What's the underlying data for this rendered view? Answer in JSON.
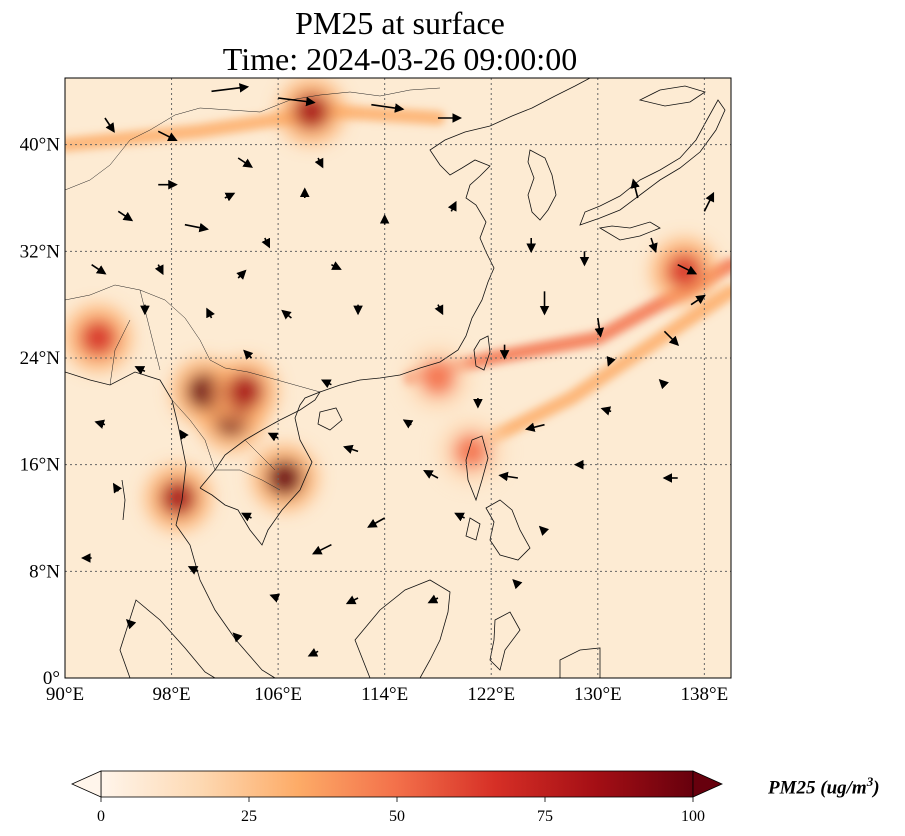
{
  "title_line1": "PM25 at surface",
  "title_line2": "Time: 2024-03-26 09:00:00",
  "map_extent": {
    "lon": [
      90,
      140
    ],
    "lat": [
      0,
      45
    ]
  },
  "lon_ticks": [
    {
      "value": 90,
      "label": "90°E"
    },
    {
      "value": 98,
      "label": "98°E"
    },
    {
      "value": 106,
      "label": "106°E"
    },
    {
      "value": 114,
      "label": "114°E"
    },
    {
      "value": 122,
      "label": "122°E"
    },
    {
      "value": 130,
      "label": "130°E"
    },
    {
      "value": 138,
      "label": "138°E"
    }
  ],
  "lat_ticks": [
    {
      "value": 0,
      "label": "0°"
    },
    {
      "value": 8,
      "label": "8°N"
    },
    {
      "value": 16,
      "label": "16°N"
    },
    {
      "value": 24,
      "label": "24°N"
    },
    {
      "value": 32,
      "label": "32°N"
    },
    {
      "value": 40,
      "label": "40°N"
    }
  ],
  "colorbar": {
    "label": "PM25 (ug/m",
    "label_sup": "3",
    "label_close": ")",
    "min": 0,
    "max": 100,
    "extend": "both",
    "ticks": [
      {
        "value": 0,
        "label": "0"
      },
      {
        "value": 25,
        "label": "25"
      },
      {
        "value": 50,
        "label": "50"
      },
      {
        "value": 75,
        "label": "75"
      },
      {
        "value": 100,
        "label": "100"
      }
    ],
    "colors": [
      "#fff5eb",
      "#fdd9b3",
      "#fdab67",
      "#f3704a",
      "#d62f26",
      "#a50f15",
      "#67000d"
    ]
  },
  "pollution_hotspots": [
    {
      "lon": 102.5,
      "lat": 19.5,
      "value": 100
    },
    {
      "lon": 100.5,
      "lat": 21.5,
      "value": 95
    },
    {
      "lon": 103.5,
      "lat": 21.5,
      "value": 90
    },
    {
      "lon": 106.5,
      "lat": 15.0,
      "value": 95
    },
    {
      "lon": 98.5,
      "lat": 13.5,
      "value": 80
    },
    {
      "lon": 108.5,
      "lat": 42.5,
      "value": 90
    },
    {
      "lon": 92.5,
      "lat": 25.5,
      "value": 70
    },
    {
      "lon": 136.5,
      "lat": 30.5,
      "value": 70
    },
    {
      "lon": 118.0,
      "lat": 22.5,
      "value": 45
    },
    {
      "lon": 120.5,
      "lat": 17.0,
      "value": 55
    }
  ],
  "pollution_bands": [
    {
      "points": [
        [
          116,
          22.5
        ],
        [
          122,
          24
        ],
        [
          130,
          25.5
        ],
        [
          140,
          31
        ]
      ],
      "value": 45
    },
    {
      "points": [
        [
          122,
          18
        ],
        [
          128,
          21
        ],
        [
          134,
          25
        ],
        [
          140,
          29
        ]
      ],
      "value": 30
    },
    {
      "points": [
        [
          90,
          40
        ],
        [
          100,
          41
        ],
        [
          110,
          42.5
        ],
        [
          118,
          42
        ]
      ],
      "value": 25
    }
  ],
  "wind_vectors": [
    {
      "lon": 101,
      "lat": 44,
      "u": 4,
      "v": 0.5
    },
    {
      "lon": 106,
      "lat": 43.5,
      "u": 4,
      "v": -0.5
    },
    {
      "lon": 113,
      "lat": 43,
      "u": 3.5,
      "v": -0.5
    },
    {
      "lon": 118,
      "lat": 42,
      "u": 2.5,
      "v": 0
    },
    {
      "lon": 93,
      "lat": 42,
      "u": 1,
      "v": -1.5
    },
    {
      "lon": 97,
      "lat": 41,
      "u": 2,
      "v": -1
    },
    {
      "lon": 103,
      "lat": 39,
      "u": 1.5,
      "v": -1
    },
    {
      "lon": 109,
      "lat": 39,
      "u": 0.5,
      "v": -1
    },
    {
      "lon": 97,
      "lat": 37,
      "u": 2,
      "v": 0
    },
    {
      "lon": 102,
      "lat": 36,
      "u": 1,
      "v": 0.5
    },
    {
      "lon": 108,
      "lat": 36,
      "u": 0,
      "v": 1
    },
    {
      "lon": 94,
      "lat": 35,
      "u": 1.5,
      "v": -1
    },
    {
      "lon": 99,
      "lat": 34,
      "u": 2.5,
      "v": -0.5
    },
    {
      "lon": 105,
      "lat": 33,
      "u": 0.5,
      "v": -1
    },
    {
      "lon": 92,
      "lat": 31,
      "u": 1.5,
      "v": -1
    },
    {
      "lon": 97,
      "lat": 31,
      "u": 0.5,
      "v": -1
    },
    {
      "lon": 103,
      "lat": 30,
      "u": 0.8,
      "v": 0.8
    },
    {
      "lon": 110,
      "lat": 31,
      "u": 1,
      "v": -0.5
    },
    {
      "lon": 114,
      "lat": 34,
      "u": 0,
      "v": 1
    },
    {
      "lon": 119,
      "lat": 35,
      "u": 0.5,
      "v": 1
    },
    {
      "lon": 125,
      "lat": 33,
      "u": 0,
      "v": -1.5
    },
    {
      "lon": 129,
      "lat": 32,
      "u": 0,
      "v": -1.5
    },
    {
      "lon": 126,
      "lat": 29,
      "u": 0,
      "v": -2.5
    },
    {
      "lon": 130,
      "lat": 27,
      "u": 0.3,
      "v": -2
    },
    {
      "lon": 133,
      "lat": 36,
      "u": -0.5,
      "v": 2
    },
    {
      "lon": 134,
      "lat": 33,
      "u": 0.5,
      "v": -1.5
    },
    {
      "lon": 136,
      "lat": 31,
      "u": 2,
      "v": -1
    },
    {
      "lon": 137,
      "lat": 28,
      "u": 1.5,
      "v": 1
    },
    {
      "lon": 138,
      "lat": 35,
      "u": 1,
      "v": 2
    },
    {
      "lon": 135,
      "lat": 26,
      "u": 1.5,
      "v": -1.5
    },
    {
      "lon": 96,
      "lat": 28,
      "u": 0,
      "v": -1
    },
    {
      "lon": 101,
      "lat": 27,
      "u": -0.5,
      "v": 1
    },
    {
      "lon": 107,
      "lat": 27,
      "u": -1,
      "v": 0.8
    },
    {
      "lon": 112,
      "lat": 28,
      "u": 0,
      "v": -1
    },
    {
      "lon": 118,
      "lat": 28,
      "u": 0.5,
      "v": -1
    },
    {
      "lon": 123,
      "lat": 25,
      "u": 0,
      "v": -1.5
    },
    {
      "lon": 96,
      "lat": 23,
      "u": -1,
      "v": 0.5
    },
    {
      "lon": 104,
      "lat": 24,
      "u": -0.8,
      "v": 0.8
    },
    {
      "lon": 110,
      "lat": 22,
      "u": -1,
      "v": 0.5
    },
    {
      "lon": 116,
      "lat": 19,
      "u": -0.8,
      "v": 0.5
    },
    {
      "lon": 121,
      "lat": 21,
      "u": 0,
      "v": -1
    },
    {
      "lon": 126,
      "lat": 19,
      "u": -2,
      "v": -0.5
    },
    {
      "lon": 131,
      "lat": 20,
      "u": -1,
      "v": 0.3
    },
    {
      "lon": 93,
      "lat": 19,
      "u": -1,
      "v": 0.3
    },
    {
      "lon": 99,
      "lat": 18,
      "u": -0.5,
      "v": 0.8
    },
    {
      "lon": 106,
      "lat": 18,
      "u": -1,
      "v": 0.5
    },
    {
      "lon": 112,
      "lat": 17,
      "u": -1.5,
      "v": 0.5
    },
    {
      "lon": 118,
      "lat": 15,
      "u": -1.5,
      "v": 0.8
    },
    {
      "lon": 124,
      "lat": 15,
      "u": -2,
      "v": 0.3
    },
    {
      "lon": 129,
      "lat": 16,
      "u": -1,
      "v": 0
    },
    {
      "lon": 136,
      "lat": 15,
      "u": -1.5,
      "v": 0
    },
    {
      "lon": 94,
      "lat": 14,
      "u": -0.5,
      "v": 0.8
    },
    {
      "lon": 104,
      "lat": 12,
      "u": -1,
      "v": 0.5
    },
    {
      "lon": 110,
      "lat": 10,
      "u": -2,
      "v": -1
    },
    {
      "lon": 114,
      "lat": 12,
      "u": -1.8,
      "v": -1
    },
    {
      "lon": 120,
      "lat": 12,
      "u": -1,
      "v": 0.5
    },
    {
      "lon": 126,
      "lat": 11,
      "u": -0.5,
      "v": 0.5
    },
    {
      "lon": 92,
      "lat": 9,
      "u": -1,
      "v": 0
    },
    {
      "lon": 100,
      "lat": 8,
      "u": -1,
      "v": 0.5
    },
    {
      "lon": 106,
      "lat": 6,
      "u": -0.8,
      "v": 0.3
    },
    {
      "lon": 112,
      "lat": 6,
      "u": -1.2,
      "v": -0.6
    },
    {
      "lon": 118,
      "lat": 6,
      "u": -1,
      "v": -0.5
    },
    {
      "lon": 95,
      "lat": 4,
      "u": -0.5,
      "v": 0.5
    },
    {
      "lon": 103,
      "lat": 3,
      "u": -0.5,
      "v": 0.5
    },
    {
      "lon": 109,
      "lat": 2,
      "u": -1,
      "v": -0.5
    },
    {
      "lon": 124,
      "lat": 7,
      "u": -0.5,
      "v": 0.5
    },
    {
      "lon": 135,
      "lat": 22,
      "u": -0.5,
      "v": 0.5
    },
    {
      "lon": 131,
      "lat": 24,
      "u": -0.3,
      "v": -0.8
    }
  ]
}
